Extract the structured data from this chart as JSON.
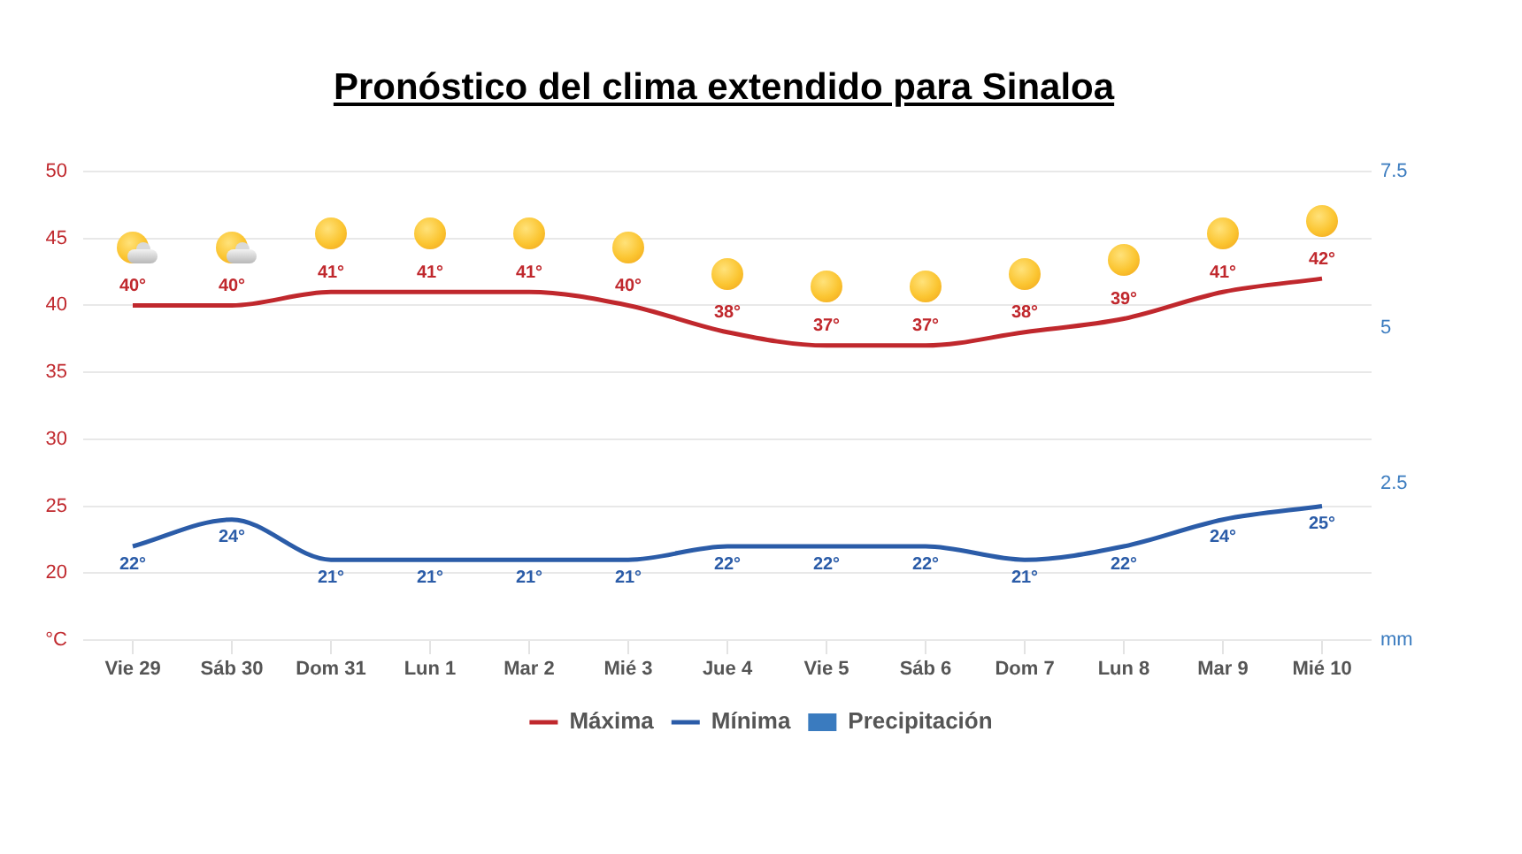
{
  "chart_data": {
    "type": "line",
    "title": "Pronóstico del clima extendido para Sinaloa",
    "categories": [
      "Vie 29",
      "Sáb 30",
      "Dom 31",
      "Lun 1",
      "Mar 2",
      "Mié 3",
      "Jue 4",
      "Vie 5",
      "Sáb 6",
      "Dom 7",
      "Lun 8",
      "Mar 9",
      "Mié 10"
    ],
    "series": [
      {
        "name": "Máxima",
        "color": "#c0282d",
        "values": [
          40,
          40,
          41,
          41,
          41,
          40,
          38,
          37,
          37,
          38,
          39,
          41,
          42
        ],
        "value_labels": [
          "40°",
          "40°",
          "41°",
          "41°",
          "41°",
          "40°",
          "38°",
          "37°",
          "37°",
          "38°",
          "39°",
          "41°",
          "42°"
        ]
      },
      {
        "name": "Mínima",
        "color": "#2b5ca8",
        "values": [
          22,
          24,
          21,
          21,
          21,
          21,
          22,
          22,
          22,
          21,
          22,
          24,
          25
        ],
        "value_labels": [
          "22°",
          "24°",
          "21°",
          "21°",
          "21°",
          "21°",
          "22°",
          "22°",
          "22°",
          "21°",
          "22°",
          "24°",
          "25°"
        ]
      },
      {
        "name": "Precipitación",
        "type": "bar",
        "axis": "y2",
        "color": "#3a7bbf",
        "values": [
          0,
          0,
          0,
          0,
          0,
          0,
          0,
          0,
          0,
          0,
          0,
          0,
          0
        ]
      }
    ],
    "ylim": [
      15,
      50
    ],
    "yticks": [
      {
        "value": 15,
        "label": "°C"
      },
      20,
      25,
      30,
      35,
      40,
      45,
      50
    ],
    "y2lim": [
      0,
      7.5
    ],
    "y2ticks": [
      {
        "value": 0,
        "label": "mm"
      },
      2.5,
      5,
      7.5
    ],
    "grid": "y",
    "legend": "bottom"
  }
}
